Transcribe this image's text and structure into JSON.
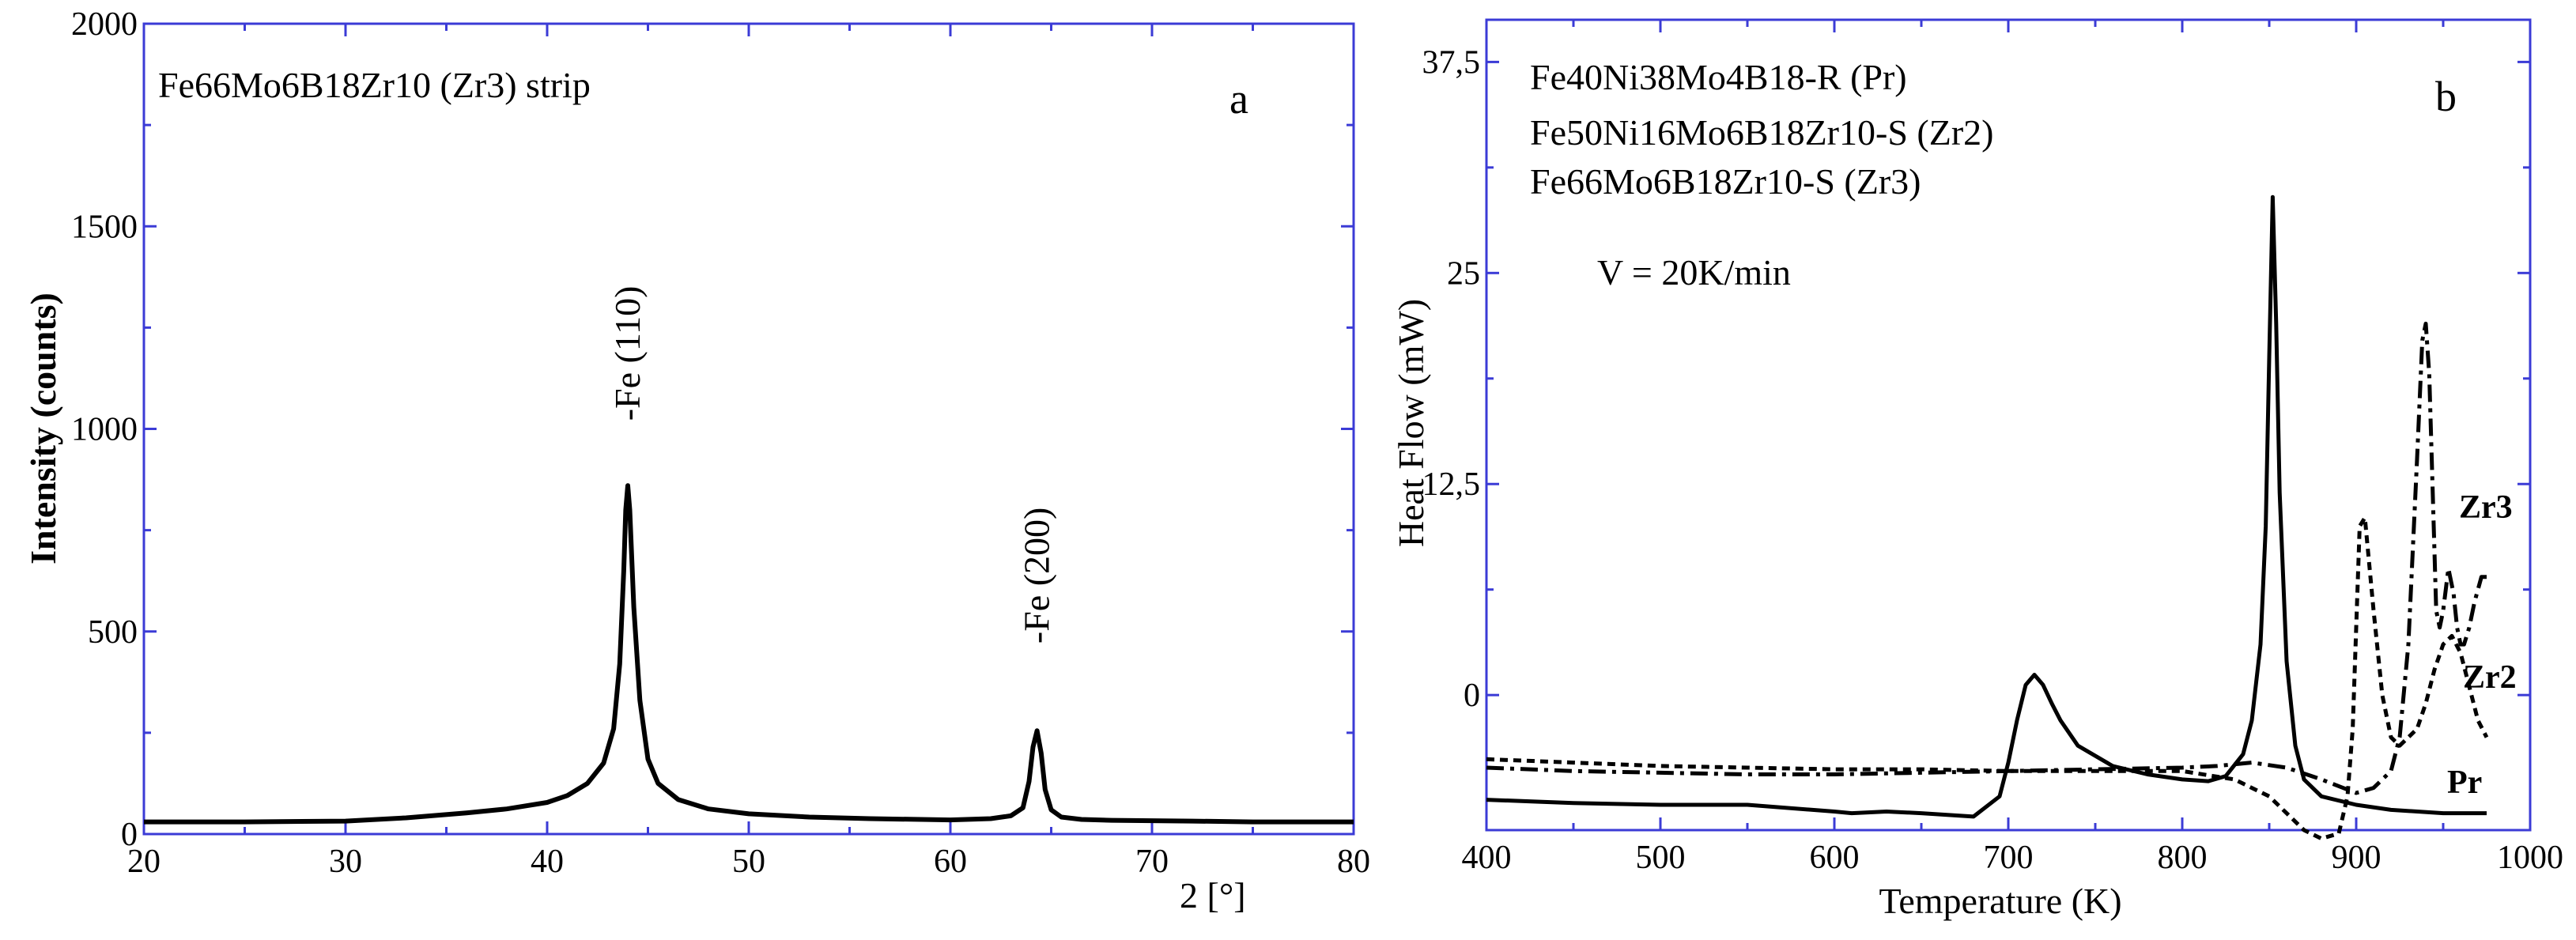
{
  "colors": {
    "frame": "#3b3bd6",
    "trace": "#000000",
    "background": "#ffffff"
  },
  "chart_data": [
    {
      "type": "line",
      "panel_label": "a",
      "title": "Fe66Mo6B18Zr10 (Zr3) strip",
      "xlabel": "2   [°]",
      "ylabel": "Intensity (counts)",
      "xlim": [
        20,
        80
      ],
      "ylim": [
        0,
        2000
      ],
      "xticks": [
        "20",
        "30",
        "40",
        "50",
        "60",
        "70",
        "80"
      ],
      "yticks": [
        "0",
        "500",
        "1000",
        "1500",
        "2000"
      ],
      "grid": false,
      "annotations": [
        {
          "text": "-Fe (110)",
          "x": 44,
          "y": 1020
        },
        {
          "text": "-Fe (200)",
          "x": 64.3,
          "y": 470
        }
      ],
      "series": [
        {
          "style": "solid",
          "x": [
            20,
            25,
            30,
            33,
            36,
            38,
            40,
            41,
            42,
            42.8,
            43.3,
            43.6,
            43.8,
            43.9,
            44,
            44.1,
            44.3,
            44.6,
            45,
            45.5,
            46.5,
            48,
            50,
            53,
            56,
            60,
            62,
            63,
            63.6,
            63.9,
            64.1,
            64.3,
            64.5,
            64.7,
            65,
            65.5,
            66.5,
            68,
            70,
            72,
            75,
            78,
            80
          ],
          "y": [
            30,
            30,
            32,
            40,
            52,
            62,
            78,
            95,
            125,
            175,
            260,
            420,
            650,
            800,
            860,
            800,
            560,
            330,
            185,
            125,
            85,
            62,
            50,
            42,
            38,
            35,
            38,
            45,
            65,
            130,
            215,
            255,
            200,
            110,
            60,
            42,
            36,
            34,
            33,
            32,
            30,
            30,
            30
          ]
        }
      ]
    },
    {
      "type": "line",
      "panel_label": "b",
      "xlabel": "Temperature (K)",
      "ylabel": "Heat Flow (mW)",
      "xlim": [
        400,
        1000
      ],
      "ylim": [
        -8,
        40
      ],
      "xticks": [
        "400",
        "500",
        "600",
        "700",
        "800",
        "900",
        "1000"
      ],
      "yticks": [
        "0",
        "12,5",
        "25",
        "37,5"
      ],
      "grid": false,
      "legend_lines": [
        "Fe40Ni38Mo4B18-R (Pr)",
        "Fe50Ni16Mo6B18Zr10-S (Zr2)",
        "Fe66Mo6B18Zr10-S (Zr3)"
      ],
      "annotation_rate": "V = 20K/min",
      "series": [
        {
          "name": "Pr",
          "style": "solid",
          "x": [
            400,
            450,
            500,
            550,
            600,
            610,
            630,
            650,
            680,
            695,
            700,
            705,
            710,
            715,
            720,
            725,
            730,
            740,
            760,
            780,
            800,
            815,
            825,
            835,
            840,
            845,
            848,
            850,
            852,
            854,
            856,
            860,
            865,
            870,
            880,
            900,
            920,
            950,
            975
          ],
          "y": [
            -6.2,
            -6.4,
            -6.5,
            -6.5,
            -6.9,
            -7.0,
            -6.9,
            -7.0,
            -7.2,
            -6.0,
            -4.0,
            -1.5,
            0.6,
            1.2,
            0.6,
            -0.5,
            -1.5,
            -3.0,
            -4.2,
            -4.7,
            -5.0,
            -5.1,
            -4.8,
            -3.5,
            -1.5,
            3.0,
            10.0,
            20.0,
            29.5,
            22.0,
            12.0,
            2.0,
            -3.0,
            -5.0,
            -6.0,
            -6.5,
            -6.8,
            -7.0,
            -7.0
          ]
        },
        {
          "name": "Zr2",
          "style": "dashed",
          "x": [
            400,
            450,
            500,
            550,
            600,
            650,
            700,
            750,
            800,
            830,
            850,
            860,
            870,
            880,
            890,
            895,
            898,
            900,
            902,
            905,
            910,
            915,
            920,
            925,
            930,
            935,
            940,
            945,
            950,
            955,
            960,
            965,
            970,
            975
          ],
          "y": [
            -3.8,
            -4.0,
            -4.2,
            -4.3,
            -4.4,
            -4.4,
            -4.5,
            -4.5,
            -4.5,
            -5.0,
            -6.0,
            -7.0,
            -8.0,
            -8.5,
            -8.2,
            -6.0,
            -2.0,
            4.0,
            10.0,
            10.5,
            5.0,
            0.0,
            -2.5,
            -3.0,
            -2.5,
            -2.0,
            -0.5,
            1.5,
            3.0,
            3.5,
            2.5,
            0.5,
            -1.5,
            -2.5
          ]
        },
        {
          "name": "Zr3",
          "style": "dash-dot",
          "x": [
            400,
            450,
            500,
            550,
            600,
            650,
            700,
            750,
            800,
            820,
            840,
            860,
            880,
            900,
            910,
            920,
            925,
            930,
            935,
            938,
            940,
            942,
            944,
            946,
            948,
            950,
            953,
            956,
            958,
            960,
            962,
            965,
            968,
            972,
            975
          ],
          "y": [
            -4.3,
            -4.5,
            -4.6,
            -4.7,
            -4.7,
            -4.6,
            -4.5,
            -4.4,
            -4.3,
            -4.2,
            -4.0,
            -4.3,
            -5.0,
            -5.8,
            -5.5,
            -4.5,
            -2.5,
            3.0,
            14.0,
            21.0,
            22.0,
            19.0,
            12.0,
            5.0,
            4.0,
            5.0,
            7.5,
            6.0,
            4.0,
            3.0,
            3.0,
            4.0,
            5.5,
            7.0,
            7.0
          ]
        }
      ],
      "curve_labels": [
        "Pr",
        "Zr2",
        "Zr3"
      ]
    }
  ]
}
